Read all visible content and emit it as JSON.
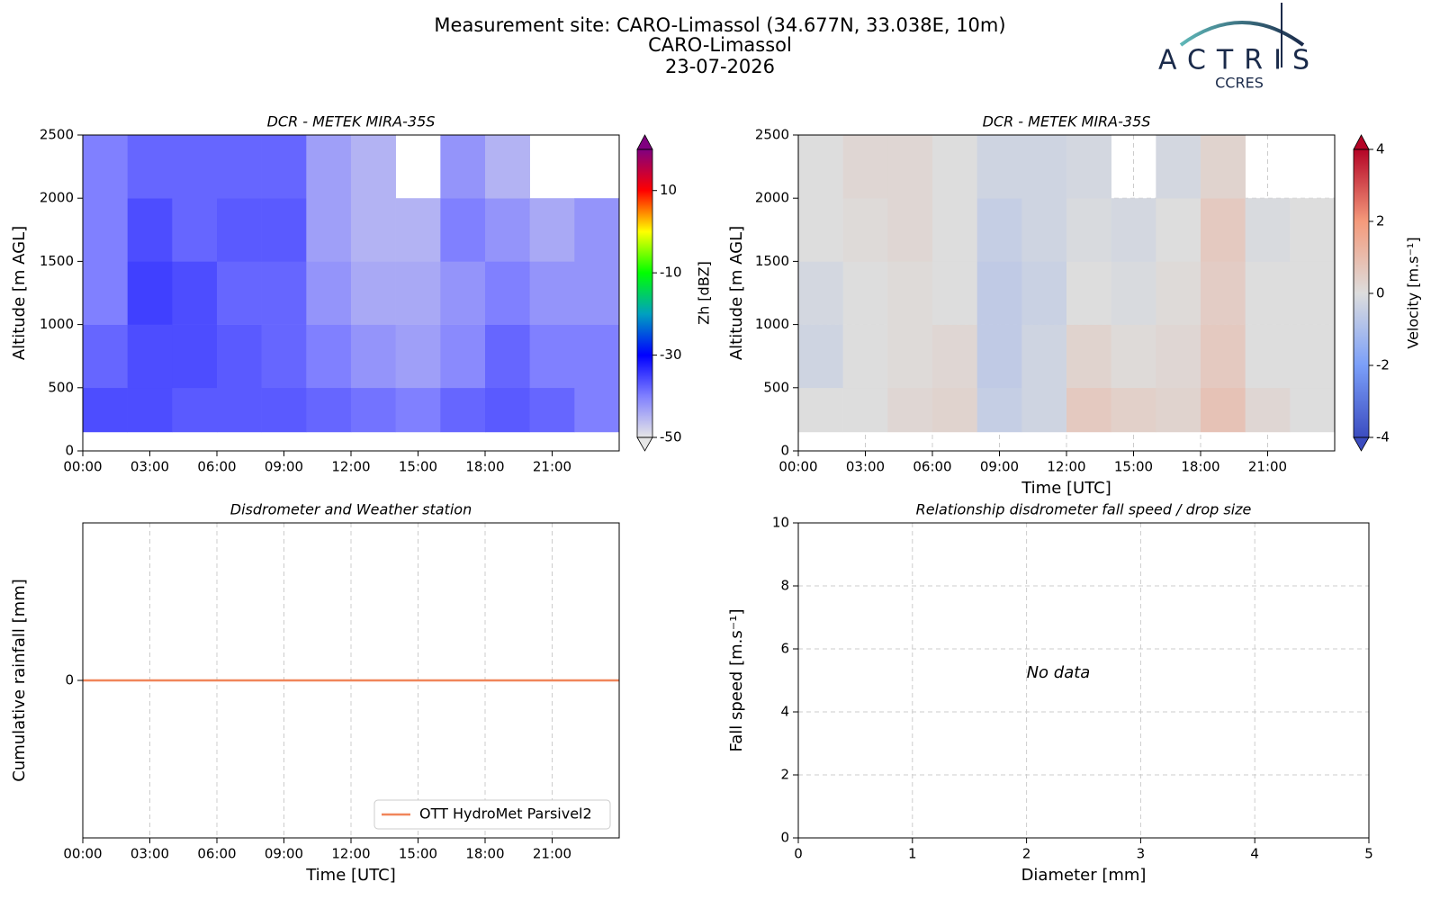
{
  "header": {
    "title": [
      "Measurement site: CARO-Limassol (34.677N, 33.038E, 10m)",
      "CARO-Limassol",
      "23-07-2026"
    ],
    "logo": {
      "name": "ACTRIS",
      "subtitle": "CCRES"
    }
  },
  "chart_data": [
    {
      "type": "heatmap",
      "title": "DCR - METEK MIRA-35S",
      "ylabel": "Altitude [m AGL]",
      "colorbar_label": "Zh [dBZ]",
      "x_edges": [
        0,
        2,
        4,
        6,
        8,
        10,
        12,
        14,
        16,
        18,
        20,
        22,
        24
      ],
      "y_edges": [
        150,
        500,
        1000,
        1500,
        2000,
        2500
      ],
      "z": [
        [
          -36,
          -36,
          -37,
          -37,
          -37,
          -38,
          -39,
          -40,
          -38,
          -37,
          -38,
          -40
        ],
        [
          -38,
          -36,
          -36,
          -37,
          -38,
          -40,
          -42,
          -43,
          -41,
          -38,
          -40,
          -40
        ],
        [
          -40,
          -35,
          -36,
          -38,
          -38,
          -42,
          -44,
          -44,
          -42,
          -40,
          -42,
          -42
        ],
        [
          -40,
          -36,
          -38,
          -37,
          -37,
          -43,
          -45,
          -45,
          -40,
          -42,
          -44,
          -42
        ],
        [
          -40,
          -38,
          -38,
          -38,
          -38,
          -43,
          -45,
          null,
          -42,
          -45,
          null,
          null
        ]
      ],
      "xlim": [
        0,
        24
      ],
      "xticks": [
        {
          "value": 0,
          "label": "00:00"
        },
        {
          "value": 3,
          "label": "03:00"
        },
        {
          "value": 6,
          "label": "06:00"
        },
        {
          "value": 9,
          "label": "09:00"
        },
        {
          "value": 12,
          "label": "12:00"
        },
        {
          "value": 15,
          "label": "15:00"
        },
        {
          "value": 18,
          "label": "18:00"
        },
        {
          "value": 21,
          "label": "21:00"
        }
      ],
      "ylim": [
        0,
        2500
      ],
      "yticks": [
        0,
        500,
        1000,
        1500,
        2000,
        2500
      ],
      "grid": false,
      "clim": [
        -50,
        20
      ],
      "cticks": [
        -50,
        -30,
        -10,
        10
      ],
      "colorscale": [
        {
          "value": -50,
          "color": "#e6e6e6"
        },
        {
          "value": -40,
          "color": "#8080ff"
        },
        {
          "value": -30,
          "color": "#0000ff"
        },
        {
          "value": -20,
          "color": "#00a0c0"
        },
        {
          "value": -10,
          "color": "#00ff00"
        },
        {
          "value": 0,
          "color": "#ffff00"
        },
        {
          "value": 10,
          "color": "#ff0000"
        },
        {
          "value": 20,
          "color": "#800080"
        }
      ]
    },
    {
      "type": "heatmap",
      "title": "DCR - METEK MIRA-35S",
      "ylabel": "Altitude [m AGL]",
      "xlabel": "Time [UTC]",
      "colorbar_label": "Velocity [m.s⁻¹]",
      "x_edges": [
        0,
        2,
        4,
        6,
        8,
        10,
        12,
        14,
        16,
        18,
        20,
        22,
        24
      ],
      "y_edges": [
        150,
        500,
        1000,
        1500,
        2000,
        2500
      ],
      "z": [
        [
          0,
          0,
          0.2,
          0.3,
          -0.5,
          -0.3,
          0.6,
          0.4,
          0.3,
          0.8,
          0.2,
          0
        ],
        [
          -0.3,
          0,
          0.1,
          0.2,
          -0.6,
          -0.3,
          0.3,
          0.1,
          0.2,
          0.6,
          0,
          0
        ],
        [
          -0.2,
          0,
          0.1,
          0,
          -0.6,
          -0.4,
          0,
          -0.1,
          0.1,
          0.5,
          0,
          0
        ],
        [
          0,
          0.1,
          0.2,
          0,
          -0.5,
          -0.3,
          -0.1,
          -0.2,
          0,
          0.6,
          -0.1,
          0
        ],
        [
          0,
          0.2,
          0.2,
          0,
          -0.3,
          -0.3,
          -0.2,
          null,
          -0.2,
          0.3,
          null,
          null
        ]
      ],
      "xlim": [
        0,
        24
      ],
      "xticks": [
        {
          "value": 0,
          "label": "00:00"
        },
        {
          "value": 3,
          "label": "03:00"
        },
        {
          "value": 6,
          "label": "06:00"
        },
        {
          "value": 9,
          "label": "09:00"
        },
        {
          "value": 12,
          "label": "12:00"
        },
        {
          "value": 15,
          "label": "15:00"
        },
        {
          "value": 18,
          "label": "18:00"
        },
        {
          "value": 21,
          "label": "21:00"
        }
      ],
      "ylim": [
        0,
        2500
      ],
      "yticks": [
        0,
        500,
        1000,
        1500,
        2000,
        2500
      ],
      "grid": true,
      "clim": [
        -4,
        4
      ],
      "cticks": [
        -4,
        -2,
        0,
        2,
        4
      ],
      "colorscale": [
        {
          "value": -4,
          "color": "#3b4cc0"
        },
        {
          "value": -2,
          "color": "#7b9ff9"
        },
        {
          "value": 0,
          "color": "#dddddd"
        },
        {
          "value": 2,
          "color": "#f49a7b"
        },
        {
          "value": 4,
          "color": "#b40426"
        }
      ]
    },
    {
      "type": "line",
      "title": "Disdrometer and Weather station",
      "ylabel": "Cumulative rainfall [mm]",
      "xlabel": "Time [UTC]",
      "x": [
        0,
        24
      ],
      "series": [
        {
          "name": "OTT HydroMet Parsivel2",
          "color": "#f0855a",
          "values": [
            0,
            0
          ]
        }
      ],
      "xlim": [
        0,
        24
      ],
      "xticks": [
        {
          "value": 0,
          "label": "00:00"
        },
        {
          "value": 3,
          "label": "03:00"
        },
        {
          "value": 6,
          "label": "06:00"
        },
        {
          "value": 9,
          "label": "09:00"
        },
        {
          "value": 12,
          "label": "12:00"
        },
        {
          "value": 15,
          "label": "15:00"
        },
        {
          "value": 18,
          "label": "18:00"
        },
        {
          "value": 21,
          "label": "21:00"
        }
      ],
      "ylim": [
        -1,
        1
      ],
      "yticks": [
        0
      ],
      "grid": true,
      "legend": "lower right"
    },
    {
      "type": "scatter",
      "title": "Relationship disdrometer fall speed / drop size",
      "ylabel": "Fall speed [m.s⁻¹]",
      "xlabel": "Diameter [mm]",
      "annotation": "No data",
      "xlim": [
        0,
        5
      ],
      "xticks": [
        0,
        1,
        2,
        3,
        4,
        5
      ],
      "ylim": [
        0,
        10
      ],
      "yticks": [
        0,
        2,
        4,
        6,
        8,
        10
      ],
      "grid": true
    }
  ]
}
